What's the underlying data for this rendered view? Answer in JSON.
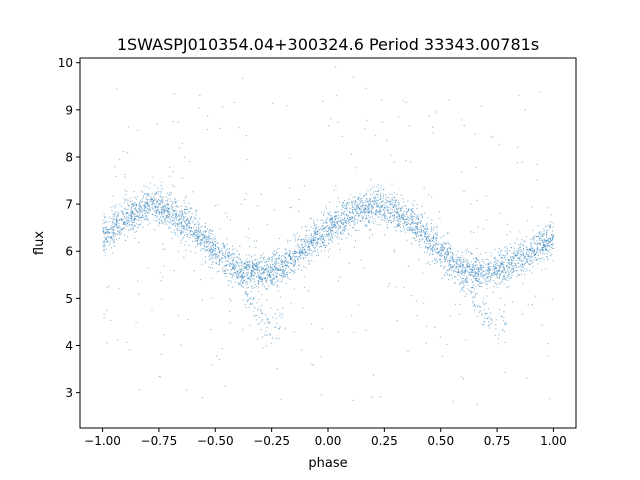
{
  "chart_data": {
    "type": "scatter",
    "title": "1SWASPJ010354.04+300324.6 Period 33343.00781s",
    "xlabel": "phase",
    "ylabel": "flux",
    "xlim": [
      -1.1,
      1.1
    ],
    "ylim": [
      2.25,
      10.1
    ],
    "x_ticks": [
      -1.0,
      -0.75,
      -0.5,
      -0.25,
      0.0,
      0.25,
      0.5,
      0.75,
      1.0
    ],
    "x_tick_labels": [
      "−1.00",
      "−0.75",
      "−0.50",
      "−0.25",
      "0.00",
      "0.25",
      "0.50",
      "0.75",
      "1.00"
    ],
    "y_ticks": [
      3,
      4,
      5,
      6,
      7,
      8,
      9,
      10
    ],
    "y_tick_labels": [
      "3",
      "4",
      "5",
      "6",
      "7",
      "8",
      "9",
      "10"
    ],
    "grid": false,
    "series_color": "#1f77b4",
    "phase_range": [
      -1.0,
      1.0
    ],
    "light_curve": {
      "phase": [
        -1.0,
        -0.9,
        -0.8,
        -0.75,
        -0.7,
        -0.6,
        -0.5,
        -0.4,
        -0.3,
        -0.25,
        -0.2,
        -0.1,
        0.0,
        0.1,
        0.2,
        0.25,
        0.3,
        0.4,
        0.5,
        0.6,
        0.7,
        0.75,
        0.8,
        0.9,
        1.0
      ],
      "flux_main": [
        6.3,
        6.7,
        6.95,
        6.95,
        6.85,
        6.5,
        6.0,
        5.6,
        5.55,
        5.6,
        5.7,
        6.1,
        6.45,
        6.8,
        6.95,
        6.95,
        6.85,
        6.5,
        6.0,
        5.6,
        5.55,
        5.6,
        5.7,
        6.0,
        6.3
      ],
      "flux_dip_branch": [
        null,
        null,
        null,
        null,
        null,
        null,
        null,
        5.4,
        4.6,
        4.3,
        4.6,
        null,
        null,
        null,
        null,
        null,
        null,
        null,
        null,
        5.4,
        4.6,
        4.3,
        4.6,
        null,
        null
      ]
    },
    "band_width": 0.7,
    "outlier_range": [
      2.7,
      9.7
    ]
  }
}
